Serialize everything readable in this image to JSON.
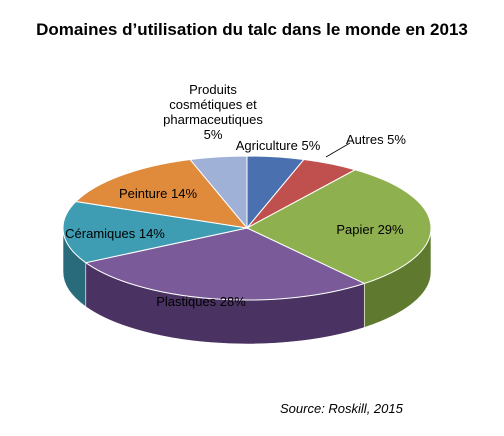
{
  "chart_data": {
    "type": "pie",
    "three_d": true,
    "title": "Domaines d’utilisation du talc dans le monde en 2013",
    "legend": "none",
    "slices": [
      {
        "name": "Agriculture",
        "value": 5,
        "label_lines": [
          "Agriculture 5%"
        ],
        "color": "#4a70b0",
        "side": "#2f4c80"
      },
      {
        "name": "Autres",
        "value": 5,
        "label_lines": [
          "Autres 5%"
        ],
        "color": "#c0504d",
        "side": "#8b3331"
      },
      {
        "name": "Papier",
        "value": 29,
        "label_lines": [
          "Papier 29%"
        ],
        "color": "#8fb04f",
        "side": "#5f7a2e"
      },
      {
        "name": "Plastiques",
        "value": 28,
        "label_lines": [
          "Plastiques 28%"
        ],
        "color": "#7a5a98",
        "side": "#4a3363"
      },
      {
        "name": "Céramiques",
        "value": 14,
        "label_lines": [
          "Céramiques 14%"
        ],
        "color": "#3f9db3",
        "side": "#2a6b7b"
      },
      {
        "name": "Peinture",
        "value": 14,
        "label_lines": [
          "Peinture 14%"
        ],
        "color": "#e08a3c",
        "side": "#a25e22"
      },
      {
        "name": "Produits cosmétiques et pharmaceutiques",
        "value": 5,
        "label_lines": [
          "Produits",
          "cosmétiques et",
          "pharmaceutiques",
          "5%"
        ],
        "color": "#9fb1d6",
        "side": "#6f80a6"
      }
    ],
    "source": "Source: Roskill, 2015"
  }
}
